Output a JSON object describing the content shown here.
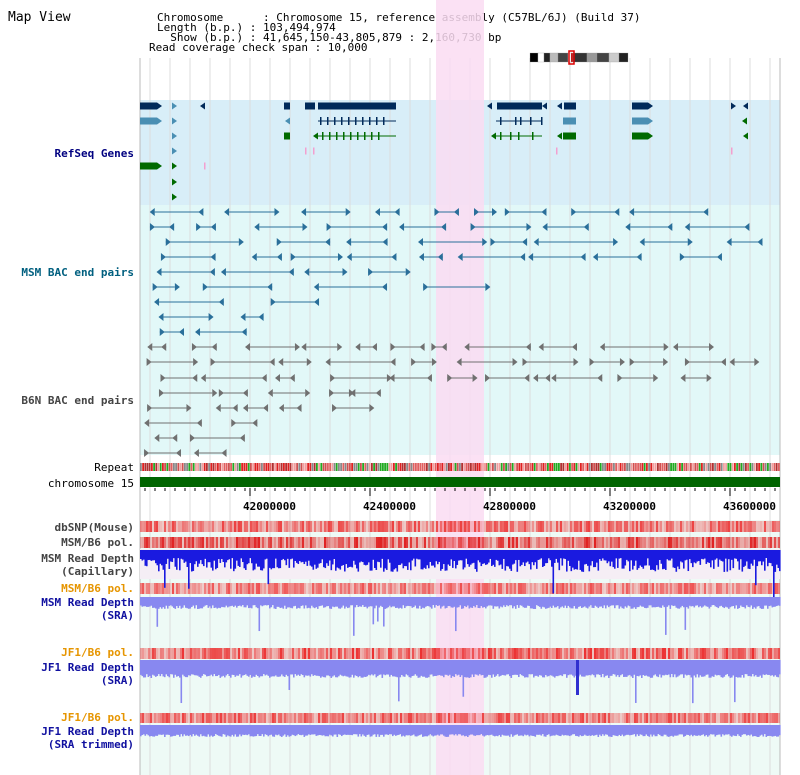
{
  "title": "Map View",
  "header": {
    "chromosome": "Chromosome      : Chromosome 15, reference assembly (C57BL/6J) (Build 37)",
    "length": "Length (b.p.) : 103,494,974",
    "show": "  Show (b.p.) : 41,645,150-43,805,879 : 2,160,730 bp",
    "coverage": "Read coverage check span : 10,000"
  },
  "tracks": {
    "refseq": "RefSeq Genes",
    "msm_bac": "MSM BAC end pairs",
    "b6n_bac": "B6N BAC end pairs",
    "repeat": "Repeat",
    "chromosome": "chromosome 15",
    "dbsnp": "dbSNP(Mouse)",
    "msm_b6_pol_1": "MSM/B6 pol.",
    "msm_depth_cap_1": "MSM Read Depth",
    "msm_depth_cap_2": "(Capillary)",
    "msm_b6_pol_2": "MSM/B6 pol.",
    "msm_depth_sra_1": "MSM Read Depth",
    "msm_depth_sra_2": "(SRA)",
    "jf1_b6_pol_1": "JF1/B6 pol.",
    "jf1_depth_sra_1": "JF1 Read Depth",
    "jf1_depth_sra_2": "(SRA)",
    "jf1_b6_pol_2": "JF1/B6 pol.",
    "jf1_depth_trim_1": "JF1 Read Depth",
    "jf1_depth_trim_2": "(SRA trimmed)"
  },
  "axis_ticks": [
    "42000000",
    "42400000",
    "42800000",
    "43200000",
    "43600000"
  ],
  "colors": {
    "refseq_bg": "#d8eef8",
    "bac_bg": "#e2f8f8",
    "highlight": "#fadcf2",
    "chromosome_bar": "#006400",
    "gene_dark": "#002a5a",
    "gene_mid": "#4a8fb3",
    "gene_green": "#006a00",
    "bac_line": "#2a6f9a",
    "b6n_line": "#707070",
    "depth_blue": "#1a1ae0",
    "depth_light": "#8888f0"
  }
}
